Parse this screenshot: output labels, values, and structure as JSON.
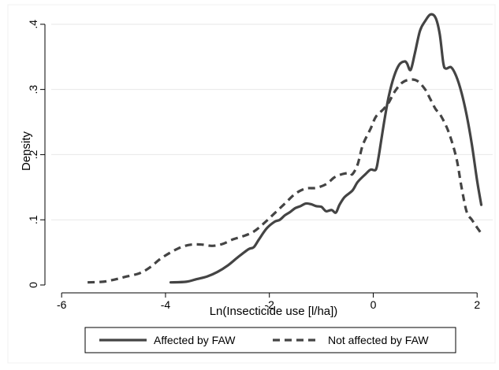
{
  "chart_data": {
    "type": "line",
    "xlabel": "Ln(Insecticide use [l/ha])",
    "ylabel": "Density",
    "xlim": [
      -6.2,
      2.3
    ],
    "ylim": [
      0,
      0.43
    ],
    "x_ticks": [
      -6,
      -4,
      -2,
      0,
      2
    ],
    "x_tick_labels": [
      "-6",
      "-4",
      "-2",
      "0",
      "2"
    ],
    "y_ticks": [
      0,
      0.1,
      0.2,
      0.3,
      0.4
    ],
    "y_tick_labels": [
      "0",
      ".1",
      ".2",
      ".3",
      ".4"
    ],
    "grid": "horizontal",
    "legend_position": "bottom",
    "series": [
      {
        "name": "Affected by FAW",
        "style": "solid",
        "color": "#444444",
        "points": [
          [
            -3.9,
            0.004
          ],
          [
            -3.6,
            0.005
          ],
          [
            -3.4,
            0.009
          ],
          [
            -3.2,
            0.013
          ],
          [
            -3.0,
            0.02
          ],
          [
            -2.8,
            0.03
          ],
          [
            -2.6,
            0.043
          ],
          [
            -2.4,
            0.055
          ],
          [
            -2.3,
            0.058
          ],
          [
            -2.2,
            0.07
          ],
          [
            -2.05,
            0.087
          ],
          [
            -1.9,
            0.097
          ],
          [
            -1.8,
            0.1
          ],
          [
            -1.7,
            0.107
          ],
          [
            -1.6,
            0.112
          ],
          [
            -1.5,
            0.118
          ],
          [
            -1.4,
            0.121
          ],
          [
            -1.3,
            0.125
          ],
          [
            -1.2,
            0.124
          ],
          [
            -1.1,
            0.121
          ],
          [
            -1.0,
            0.12
          ],
          [
            -0.95,
            0.116
          ],
          [
            -0.9,
            0.113
          ],
          [
            -0.8,
            0.115
          ],
          [
            -0.72,
            0.111
          ],
          [
            -0.65,
            0.123
          ],
          [
            -0.55,
            0.135
          ],
          [
            -0.4,
            0.145
          ],
          [
            -0.3,
            0.158
          ],
          [
            -0.15,
            0.17
          ],
          [
            -0.05,
            0.177
          ],
          [
            0.05,
            0.177
          ],
          [
            0.1,
            0.195
          ],
          [
            0.15,
            0.22
          ],
          [
            0.22,
            0.255
          ],
          [
            0.3,
            0.29
          ],
          [
            0.4,
            0.32
          ],
          [
            0.5,
            0.338
          ],
          [
            0.6,
            0.343
          ],
          [
            0.65,
            0.34
          ],
          [
            0.72,
            0.33
          ],
          [
            0.8,
            0.355
          ],
          [
            0.9,
            0.39
          ],
          [
            1.0,
            0.405
          ],
          [
            1.1,
            0.415
          ],
          [
            1.2,
            0.41
          ],
          [
            1.28,
            0.385
          ],
          [
            1.35,
            0.34
          ],
          [
            1.4,
            0.332
          ],
          [
            1.5,
            0.334
          ],
          [
            1.6,
            0.32
          ],
          [
            1.7,
            0.295
          ],
          [
            1.8,
            0.26
          ],
          [
            1.9,
            0.215
          ],
          [
            2.0,
            0.16
          ],
          [
            2.08,
            0.123
          ]
        ]
      },
      {
        "name": "Not affected by FAW",
        "style": "dashed",
        "color": "#444444",
        "points": [
          [
            -5.5,
            0.004
          ],
          [
            -5.2,
            0.005
          ],
          [
            -5.0,
            0.008
          ],
          [
            -4.8,
            0.012
          ],
          [
            -4.5,
            0.018
          ],
          [
            -4.3,
            0.027
          ],
          [
            -4.1,
            0.04
          ],
          [
            -3.9,
            0.05
          ],
          [
            -3.7,
            0.058
          ],
          [
            -3.5,
            0.062
          ],
          [
            -3.3,
            0.062
          ],
          [
            -3.1,
            0.06
          ],
          [
            -2.9,
            0.063
          ],
          [
            -2.7,
            0.07
          ],
          [
            -2.5,
            0.075
          ],
          [
            -2.3,
            0.082
          ],
          [
            -2.1,
            0.095
          ],
          [
            -1.9,
            0.11
          ],
          [
            -1.7,
            0.125
          ],
          [
            -1.5,
            0.14
          ],
          [
            -1.3,
            0.148
          ],
          [
            -1.1,
            0.149
          ],
          [
            -0.9,
            0.155
          ],
          [
            -0.75,
            0.165
          ],
          [
            -0.6,
            0.17
          ],
          [
            -0.45,
            0.172
          ],
          [
            -0.4,
            0.17
          ],
          [
            -0.3,
            0.185
          ],
          [
            -0.2,
            0.215
          ],
          [
            -0.05,
            0.24
          ],
          [
            0.05,
            0.258
          ],
          [
            0.2,
            0.27
          ],
          [
            0.3,
            0.28
          ],
          [
            0.4,
            0.295
          ],
          [
            0.55,
            0.31
          ],
          [
            0.7,
            0.315
          ],
          [
            0.85,
            0.313
          ],
          [
            1.0,
            0.3
          ],
          [
            1.1,
            0.285
          ],
          [
            1.2,
            0.27
          ],
          [
            1.3,
            0.26
          ],
          [
            1.45,
            0.235
          ],
          [
            1.6,
            0.195
          ],
          [
            1.7,
            0.15
          ],
          [
            1.8,
            0.112
          ],
          [
            1.9,
            0.1
          ],
          [
            2.0,
            0.088
          ],
          [
            2.1,
            0.077
          ]
        ]
      }
    ]
  }
}
